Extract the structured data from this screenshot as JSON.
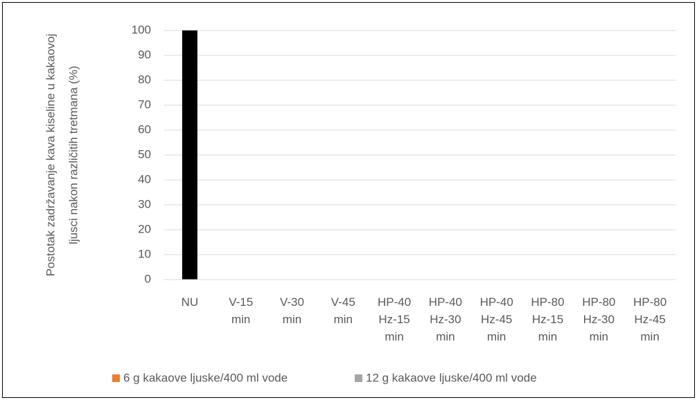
{
  "chart_data": {
    "type": "bar",
    "y_label": "Postotak zadržavanje kava kiseline u kakaovoj ljusci nakon različitih tretmana (%)",
    "categories": [
      "NU",
      "V-15 min",
      "V-30 min",
      "V-45 min",
      "HP-40 Hz-15 min",
      "HP-40 Hz-30 min",
      "HP-40 Hz-45 min",
      "HP-80 Hz-15 min",
      "HP-80 Hz-30 min",
      "HP-80 Hz-45 min"
    ],
    "series": [
      {
        "name": "6 g kakaove ljuske/400 ml vode",
        "color": "#ed7d31",
        "point_colors": [
          "#000000",
          null,
          null,
          null,
          null,
          null,
          null,
          null,
          null,
          null
        ],
        "values": [
          100,
          null,
          null,
          null,
          null,
          null,
          null,
          null,
          null,
          null
        ]
      },
      {
        "name": "12 g kakaove ljuske/400 ml vode",
        "color": "#a5a5a5",
        "values": [
          null,
          null,
          null,
          null,
          null,
          null,
          null,
          null,
          null,
          null
        ]
      }
    ],
    "ylim": [
      0,
      100
    ],
    "yticks": [
      0,
      10,
      20,
      30,
      40,
      50,
      60,
      70,
      80,
      90,
      100
    ],
    "grid": true,
    "legend": "bottom"
  }
}
